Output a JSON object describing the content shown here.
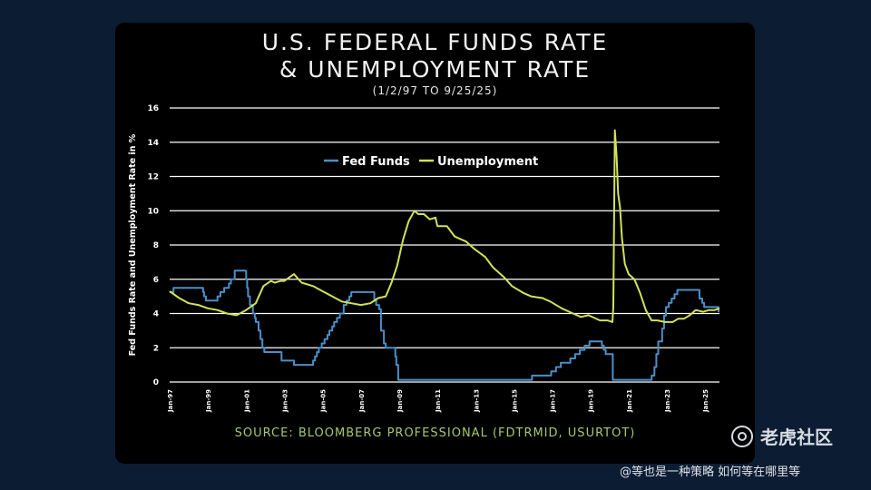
{
  "header": {
    "title_line1": "U.S. FEDERAL FUNDS RATE",
    "title_line2": "& UNEMPLOYMENT RATE",
    "subtitle": "(1/2/97 TO 9/25/25)"
  },
  "source": "SOURCE: BLOOMBERG PROFESSIONAL (FDTRMID, USURTOT)",
  "watermark": {
    "text": "老虎社区",
    "attribution": "@等也是一种策略 如何等在哪里等"
  },
  "colors": {
    "fed_funds": "#4a90c8",
    "unemployment": "#d4e157",
    "grid": "#ffffff",
    "background": "#000000"
  },
  "chart_data": {
    "type": "line",
    "ylabel": "Fed Funds Rate and Unemployment Rate in %",
    "xlabel": "",
    "ylim": [
      0,
      16
    ],
    "xlim": [
      1997.0,
      2025.75
    ],
    "yticks": [
      "0",
      "2",
      "4",
      "6",
      "8",
      "10",
      "12",
      "14",
      "16"
    ],
    "xticks": [
      {
        "label": "Jan-97",
        "x": 1997.0
      },
      {
        "label": "Jan-99",
        "x": 1999.0
      },
      {
        "label": "Jan-01",
        "x": 2001.0
      },
      {
        "label": "Jan-03",
        "x": 2003.0
      },
      {
        "label": "Jan-05",
        "x": 2005.0
      },
      {
        "label": "Jan-07",
        "x": 2007.0
      },
      {
        "label": "Jan-09",
        "x": 2009.0
      },
      {
        "label": "Jan-11",
        "x": 2011.0
      },
      {
        "label": "Jan-13",
        "x": 2013.0
      },
      {
        "label": "Jan-15",
        "x": 2015.0
      },
      {
        "label": "Jan-17",
        "x": 2017.0
      },
      {
        "label": "Jan-19",
        "x": 2019.0
      },
      {
        "label": "Jan-21",
        "x": 2021.0
      },
      {
        "label": "Jan-23",
        "x": 2023.0
      },
      {
        "label": "Jan-25",
        "x": 2025.0
      }
    ],
    "grid": true,
    "legend_position": "top-center",
    "series": [
      {
        "name": "Fed Funds",
        "step": true,
        "points": [
          [
            1997.0,
            5.25
          ],
          [
            1997.2,
            5.5
          ],
          [
            1998.75,
            5.25
          ],
          [
            1998.8,
            5.0
          ],
          [
            1998.9,
            4.75
          ],
          [
            1999.5,
            5.0
          ],
          [
            1999.65,
            5.25
          ],
          [
            1999.85,
            5.5
          ],
          [
            2000.1,
            5.75
          ],
          [
            2000.2,
            6.0
          ],
          [
            2000.4,
            6.5
          ],
          [
            2001.0,
            6.0
          ],
          [
            2001.05,
            5.5
          ],
          [
            2001.1,
            5.0
          ],
          [
            2001.2,
            4.5
          ],
          [
            2001.35,
            4.0
          ],
          [
            2001.45,
            3.75
          ],
          [
            2001.5,
            3.5
          ],
          [
            2001.65,
            3.0
          ],
          [
            2001.75,
            2.5
          ],
          [
            2001.85,
            2.0
          ],
          [
            2001.95,
            1.75
          ],
          [
            2002.85,
            1.25
          ],
          [
            2003.5,
            1.0
          ],
          [
            2004.5,
            1.25
          ],
          [
            2004.6,
            1.5
          ],
          [
            2004.7,
            1.75
          ],
          [
            2004.8,
            2.0
          ],
          [
            2004.95,
            2.25
          ],
          [
            2005.1,
            2.5
          ],
          [
            2005.25,
            2.75
          ],
          [
            2005.35,
            3.0
          ],
          [
            2005.5,
            3.25
          ],
          [
            2005.6,
            3.5
          ],
          [
            2005.75,
            3.75
          ],
          [
            2005.9,
            4.0
          ],
          [
            2006.1,
            4.5
          ],
          [
            2006.25,
            4.75
          ],
          [
            2006.4,
            5.0
          ],
          [
            2006.5,
            5.25
          ],
          [
            2007.7,
            4.75
          ],
          [
            2007.8,
            4.5
          ],
          [
            2007.95,
            4.25
          ],
          [
            2008.05,
            3.0
          ],
          [
            2008.2,
            2.25
          ],
          [
            2008.3,
            2.0
          ],
          [
            2008.8,
            1.5
          ],
          [
            2008.85,
            1.0
          ],
          [
            2008.95,
            0.125
          ],
          [
            2015.95,
            0.375
          ],
          [
            2016.95,
            0.625
          ],
          [
            2017.2,
            0.875
          ],
          [
            2017.45,
            1.125
          ],
          [
            2017.95,
            1.375
          ],
          [
            2018.2,
            1.625
          ],
          [
            2018.45,
            1.875
          ],
          [
            2018.7,
            2.125
          ],
          [
            2018.95,
            2.375
          ],
          [
            2019.6,
            2.125
          ],
          [
            2019.7,
            1.875
          ],
          [
            2019.8,
            1.625
          ],
          [
            2020.17,
            0.125
          ],
          [
            2022.2,
            0.375
          ],
          [
            2022.35,
            0.875
          ],
          [
            2022.45,
            1.625
          ],
          [
            2022.55,
            2.375
          ],
          [
            2022.75,
            3.125
          ],
          [
            2022.85,
            3.875
          ],
          [
            2022.95,
            4.375
          ],
          [
            2023.1,
            4.625
          ],
          [
            2023.25,
            4.875
          ],
          [
            2023.4,
            5.125
          ],
          [
            2023.55,
            5.375
          ],
          [
            2024.7,
            4.875
          ],
          [
            2024.85,
            4.625
          ],
          [
            2024.95,
            4.375
          ],
          [
            2025.7,
            4.125
          ],
          [
            2025.75,
            4.125
          ]
        ]
      },
      {
        "name": "Unemployment",
        "step": false,
        "points": [
          [
            1997.0,
            5.3
          ],
          [
            1997.5,
            4.9
          ],
          [
            1998.0,
            4.6
          ],
          [
            1998.5,
            4.5
          ],
          [
            1999.0,
            4.3
          ],
          [
            1999.5,
            4.2
          ],
          [
            2000.0,
            4.0
          ],
          [
            2000.5,
            3.9
          ],
          [
            2001.0,
            4.2
          ],
          [
            2001.5,
            4.6
          ],
          [
            2001.9,
            5.6
          ],
          [
            2002.3,
            5.9
          ],
          [
            2002.5,
            5.8
          ],
          [
            2002.8,
            5.9
          ],
          [
            2003.0,
            5.9
          ],
          [
            2003.5,
            6.3
          ],
          [
            2003.9,
            5.8
          ],
          [
            2004.5,
            5.6
          ],
          [
            2005.0,
            5.3
          ],
          [
            2005.5,
            5.0
          ],
          [
            2006.0,
            4.7
          ],
          [
            2006.5,
            4.6
          ],
          [
            2007.0,
            4.5
          ],
          [
            2007.5,
            4.6
          ],
          [
            2007.9,
            4.9
          ],
          [
            2008.3,
            5.0
          ],
          [
            2008.6,
            5.8
          ],
          [
            2008.9,
            6.8
          ],
          [
            2009.2,
            8.3
          ],
          [
            2009.5,
            9.4
          ],
          [
            2009.8,
            10.0
          ],
          [
            2010.0,
            9.8
          ],
          [
            2010.3,
            9.8
          ],
          [
            2010.6,
            9.5
          ],
          [
            2010.9,
            9.6
          ],
          [
            2011.0,
            9.1
          ],
          [
            2011.5,
            9.1
          ],
          [
            2011.9,
            8.5
          ],
          [
            2012.5,
            8.2
          ],
          [
            2012.9,
            7.8
          ],
          [
            2013.5,
            7.3
          ],
          [
            2013.9,
            6.7
          ],
          [
            2014.5,
            6.1
          ],
          [
            2014.9,
            5.6
          ],
          [
            2015.5,
            5.2
          ],
          [
            2015.9,
            5.0
          ],
          [
            2016.5,
            4.9
          ],
          [
            2016.9,
            4.7
          ],
          [
            2017.5,
            4.3
          ],
          [
            2017.9,
            4.1
          ],
          [
            2018.5,
            3.8
          ],
          [
            2018.9,
            3.9
          ],
          [
            2019.5,
            3.6
          ],
          [
            2019.9,
            3.6
          ],
          [
            2020.15,
            3.5
          ],
          [
            2020.2,
            4.4
          ],
          [
            2020.28,
            14.7
          ],
          [
            2020.37,
            13.2
          ],
          [
            2020.45,
            11.0
          ],
          [
            2020.55,
            10.2
          ],
          [
            2020.65,
            8.4
          ],
          [
            2020.8,
            6.9
          ],
          [
            2021.0,
            6.3
          ],
          [
            2021.3,
            6.0
          ],
          [
            2021.6,
            5.2
          ],
          [
            2021.9,
            4.2
          ],
          [
            2022.2,
            3.6
          ],
          [
            2022.5,
            3.6
          ],
          [
            2022.9,
            3.5
          ],
          [
            2023.3,
            3.5
          ],
          [
            2023.6,
            3.7
          ],
          [
            2023.9,
            3.7
          ],
          [
            2024.2,
            3.9
          ],
          [
            2024.5,
            4.2
          ],
          [
            2024.9,
            4.1
          ],
          [
            2025.2,
            4.2
          ],
          [
            2025.5,
            4.2
          ],
          [
            2025.75,
            4.3
          ]
        ]
      }
    ]
  }
}
